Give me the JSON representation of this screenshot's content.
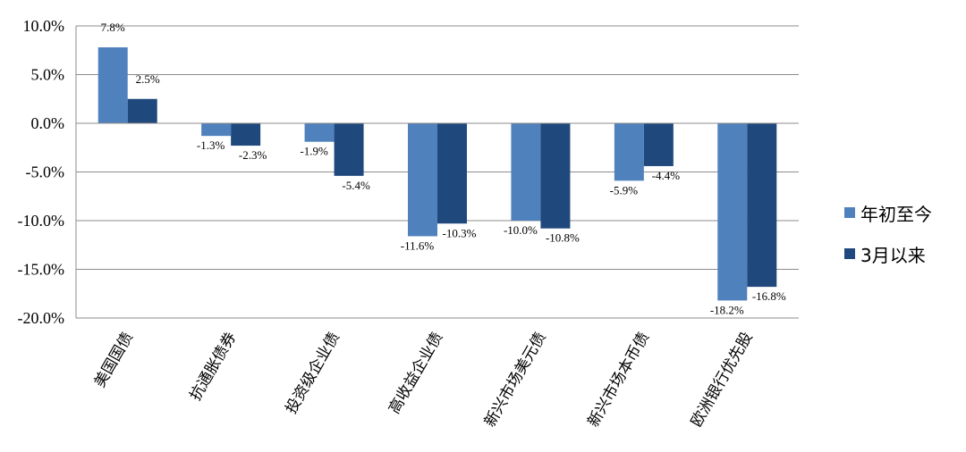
{
  "chart_data": {
    "type": "bar",
    "categories": [
      "美国国债",
      "抗通胀债券",
      "投资级企业债",
      "高收益企业债",
      "新兴市场美元债",
      "新兴市场本币债",
      "欧洲银行优先股"
    ],
    "series": [
      {
        "name": "年初至今",
        "color": "#4f81bd",
        "values": [
          7.8,
          -1.3,
          -1.9,
          -11.6,
          -10.0,
          -5.9,
          -18.2
        ],
        "labels": [
          "7.8%",
          "-1.3%",
          "-1.9%",
          "-11.6%",
          "-10.0%",
          "-5.9%",
          "-18.2%"
        ]
      },
      {
        "name": "3月以来",
        "color": "#1f497d",
        "values": [
          2.5,
          -2.3,
          -5.4,
          -10.3,
          -10.8,
          -4.4,
          -16.8
        ],
        "labels": [
          "2.5%",
          "-2.3%",
          "-5.4%",
          "-10.3%",
          "-10.8%",
          "-4.4%",
          "-16.8%"
        ]
      }
    ],
    "y_ticks": [
      "10.0%",
      "5.0%",
      "0.0%",
      "-5.0%",
      "-10.0%",
      "-15.0%",
      "-20.0%"
    ],
    "ylim": [
      -20,
      10
    ],
    "grid": true,
    "legend_position": "right"
  }
}
